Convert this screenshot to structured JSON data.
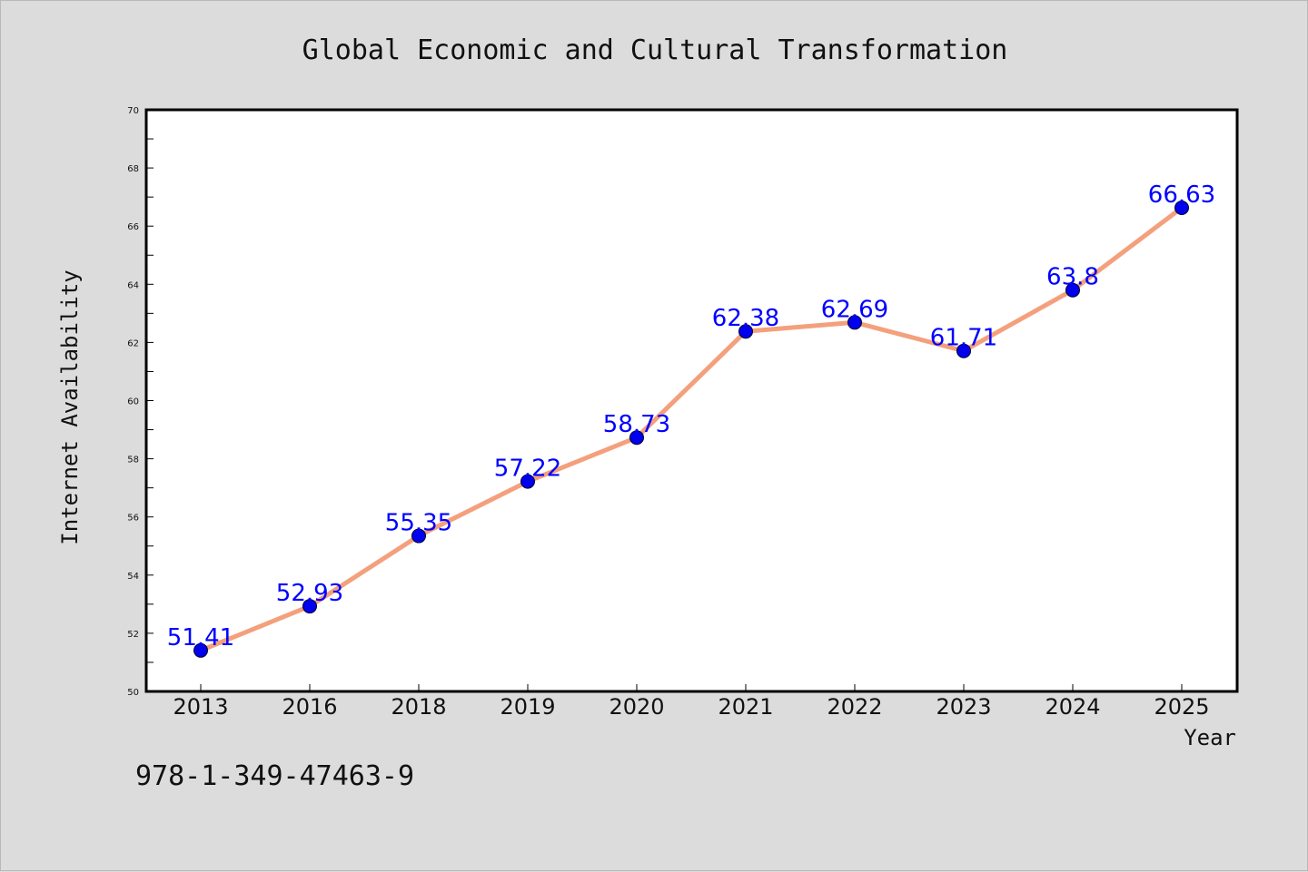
{
  "chart_data": {
    "type": "line",
    "title": "Global Economic and Cultural Transformation",
    "xlabel": "Year",
    "ylabel": "Internet Availability",
    "categories": [
      "2013",
      "2016",
      "2018",
      "2019",
      "2020",
      "2021",
      "2022",
      "2023",
      "2024",
      "2025"
    ],
    "series": [
      {
        "values": [
          51.41,
          52.93,
          55.35,
          57.22,
          58.73,
          62.38,
          62.69,
          61.71,
          63.8,
          66.63
        ],
        "data_labels": [
          "51.41",
          "52.93",
          "55.35",
          "57.22",
          "58.73",
          "62.38",
          "62.69",
          "61.71",
          "63.8",
          "66.63"
        ],
        "line_color": "#f4a07c",
        "marker_color": "#0000ee",
        "label_color": "#0000ff"
      }
    ],
    "ylim": [
      50,
      70
    ],
    "yticks": [
      "50",
      "52",
      "54",
      "56",
      "58",
      "60",
      "62",
      "64",
      "66",
      "68",
      "70"
    ],
    "grid": false,
    "legend": "none"
  },
  "footer": {
    "isbn": "978-1-349-47463-9"
  },
  "colors": {
    "background": "#dcdcdc",
    "plot_background": "#ffffff",
    "axes": "#000000"
  }
}
